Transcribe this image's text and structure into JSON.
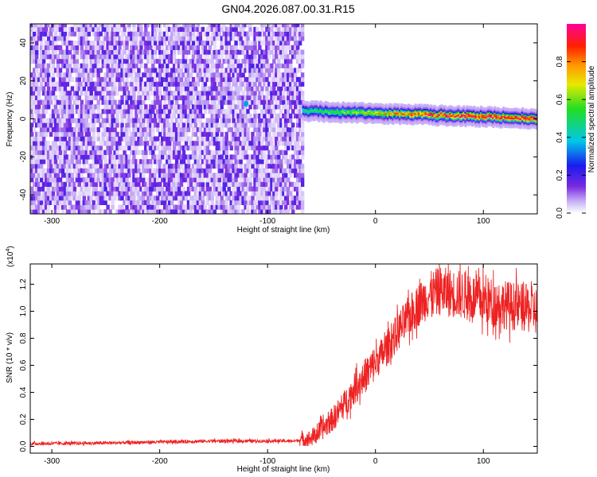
{
  "figure": {
    "title": "GN04.2026.087.00.31.R15",
    "colors": {
      "snr_line": "#ee2222",
      "axis": "#000000",
      "background": "#ffffff"
    }
  },
  "chart_data": [
    {
      "type": "heatmap",
      "xlabel": "Height of straight line (km)",
      "ylabel": "Frequency (Hz)",
      "xlim": [
        -320,
        150
      ],
      "ylim": [
        -50,
        50
      ],
      "x_ticks": [
        -300,
        -200,
        -100,
        0,
        100
      ],
      "y_ticks": [
        -40,
        -20,
        0,
        20,
        40
      ],
      "noise_region": {
        "x_range": [
          -320,
          -68
        ],
        "freq_range": [
          -50,
          50
        ],
        "amplitude_range": [
          0.02,
          0.2
        ]
      },
      "noise_outlier": {
        "x": -120,
        "freq": 8,
        "amplitude": 0.35
      },
      "signal_band": {
        "x_range": [
          -68,
          150
        ],
        "freq_center": 2,
        "freq_halfwidth": 5,
        "freq_start": 4,
        "freq_end": 0,
        "amplitude_peak": 0.95
      },
      "colorbar": {
        "label": "Normalized spectral amplitude",
        "range": [
          0,
          1
        ],
        "ticks": [
          "0.0",
          "0.2",
          "0.4",
          "0.6",
          "0.8"
        ]
      }
    },
    {
      "type": "line",
      "xlabel": "Height of straight line (km)",
      "ylabel": "SNR (10 * v/v)",
      "y_scale_label": "(x10",
      "y_scale_exponent": "4",
      "xlim": [
        -320,
        150
      ],
      "ylim": [
        -0.05,
        1.35
      ],
      "x_ticks": [
        -300,
        -200,
        -100,
        0,
        100
      ],
      "y_ticks": [
        "0.0",
        "0.2",
        "0.4",
        "0.6",
        "0.8",
        "1.0",
        "1.2"
      ],
      "series": [
        {
          "trend": {
            "x": [
              -320,
              -250,
              -150,
              -75,
              -60,
              -50,
              -40,
              -30,
              -20,
              -10,
              0,
              10,
              20,
              30,
              40,
              50,
              60,
              80,
              100,
              120,
              140,
              150
            ],
            "y": [
              0.02,
              0.025,
              0.04,
              0.04,
              0.06,
              0.12,
              0.2,
              0.3,
              0.42,
              0.52,
              0.62,
              0.72,
              0.84,
              0.95,
              1.05,
              1.12,
              1.15,
              1.12,
              1.08,
              1.05,
              1.02,
              1.0
            ]
          }
        }
      ]
    }
  ]
}
